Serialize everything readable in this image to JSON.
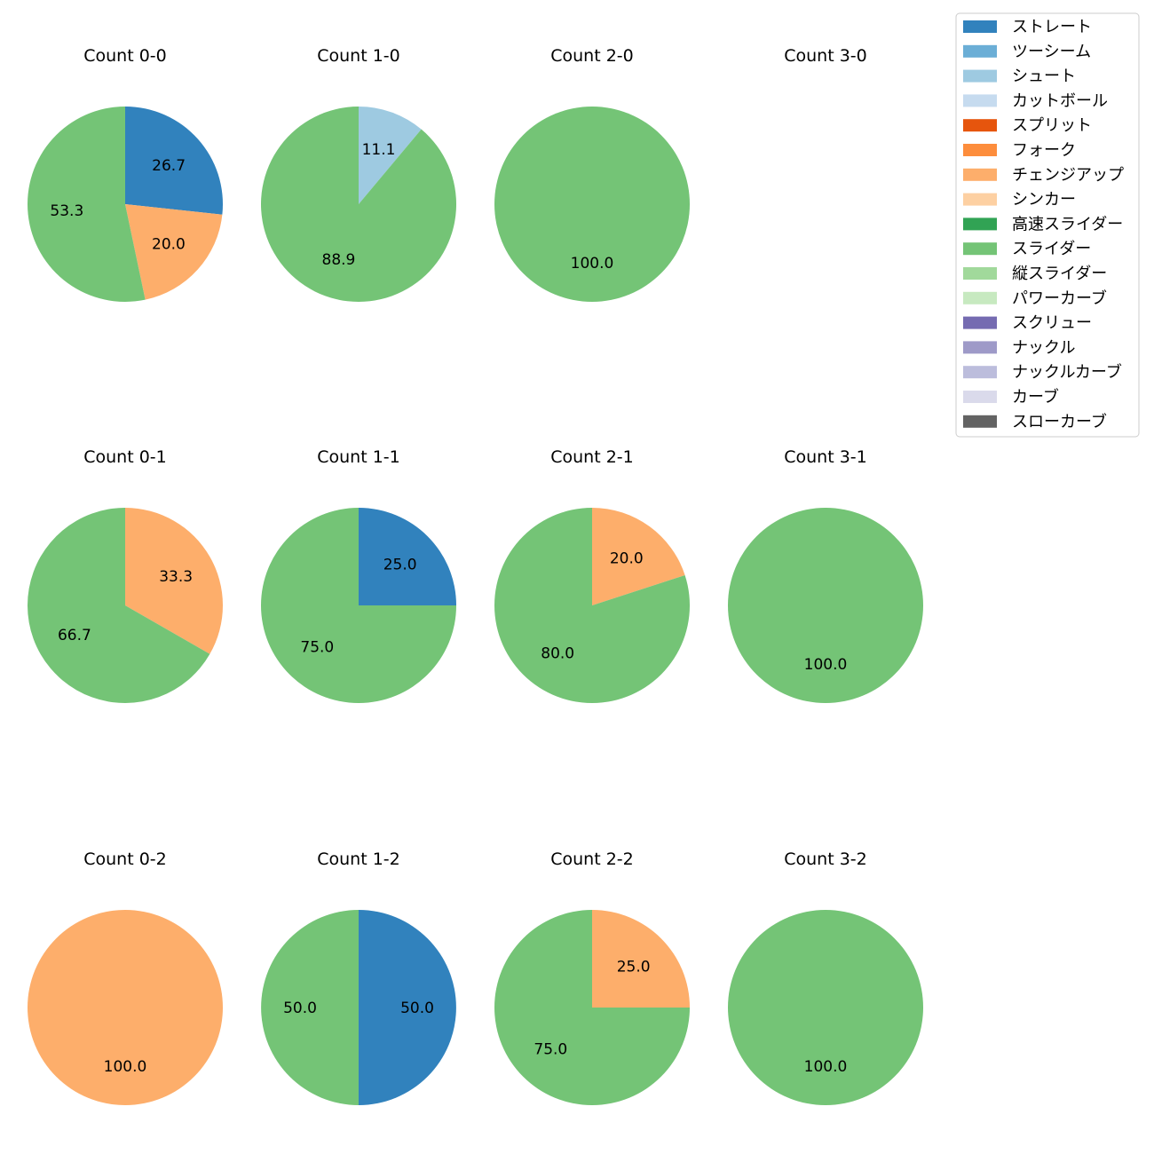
{
  "chart_data": {
    "type": "pie",
    "legend": {
      "placement": "top-right",
      "entries": [
        {
          "label": "ストレート",
          "color": "#3182bd"
        },
        {
          "label": "ツーシーム",
          "color": "#6baed6"
        },
        {
          "label": "シュート",
          "color": "#9ecae1"
        },
        {
          "label": "カットボール",
          "color": "#c6dbef"
        },
        {
          "label": "スプリット",
          "color": "#e6550d"
        },
        {
          "label": "フォーク",
          "color": "#fd8d3c"
        },
        {
          "label": "チェンジアップ",
          "color": "#fdae6b"
        },
        {
          "label": "シンカー",
          "color": "#fdd0a2"
        },
        {
          "label": "高速スライダー",
          "color": "#31a354"
        },
        {
          "label": "スライダー",
          "color": "#74c476"
        },
        {
          "label": "縦スライダー",
          "color": "#a1d99b"
        },
        {
          "label": "パワーカーブ",
          "color": "#c7e9c0"
        },
        {
          "label": "スクリュー",
          "color": "#756bb1"
        },
        {
          "label": "ナックル",
          "color": "#9e9ac8"
        },
        {
          "label": "ナックルカーブ",
          "color": "#bcbddc"
        },
        {
          "label": "カーブ",
          "color": "#dadaeb"
        },
        {
          "label": "スローカーブ",
          "color": "#636363"
        }
      ]
    },
    "pies": [
      {
        "title": "Count 0-0",
        "slices": [
          {
            "pitch": "ストレート",
            "value": 26.7,
            "label": "26.7"
          },
          {
            "pitch": "チェンジアップ",
            "value": 20.0,
            "label": "20.0"
          },
          {
            "pitch": "スライダー",
            "value": 53.3,
            "label": "53.3"
          }
        ]
      },
      {
        "title": "Count 1-0",
        "slices": [
          {
            "pitch": "シュート",
            "value": 11.1,
            "label": "11.1"
          },
          {
            "pitch": "スライダー",
            "value": 88.9,
            "label": "88.9"
          }
        ]
      },
      {
        "title": "Count 2-0",
        "slices": [
          {
            "pitch": "スライダー",
            "value": 100.0,
            "label": "100.0"
          }
        ]
      },
      {
        "title": "Count 3-0",
        "slices": []
      },
      {
        "title": "Count 0-1",
        "slices": [
          {
            "pitch": "チェンジアップ",
            "value": 33.3,
            "label": "33.3"
          },
          {
            "pitch": "スライダー",
            "value": 66.7,
            "label": "66.7"
          }
        ]
      },
      {
        "title": "Count 1-1",
        "slices": [
          {
            "pitch": "ストレート",
            "value": 25.0,
            "label": "25.0"
          },
          {
            "pitch": "スライダー",
            "value": 75.0,
            "label": "75.0"
          }
        ]
      },
      {
        "title": "Count 2-1",
        "slices": [
          {
            "pitch": "チェンジアップ",
            "value": 20.0,
            "label": "20.0"
          },
          {
            "pitch": "スライダー",
            "value": 80.0,
            "label": "80.0"
          }
        ]
      },
      {
        "title": "Count 3-1",
        "slices": [
          {
            "pitch": "スライダー",
            "value": 100.0,
            "label": "100.0"
          }
        ]
      },
      {
        "title": "Count 0-2",
        "slices": [
          {
            "pitch": "チェンジアップ",
            "value": 100.0,
            "label": "100.0"
          }
        ]
      },
      {
        "title": "Count 1-2",
        "slices": [
          {
            "pitch": "ストレート",
            "value": 50.0,
            "label": "50.0"
          },
          {
            "pitch": "スライダー",
            "value": 50.0,
            "label": "50.0"
          }
        ]
      },
      {
        "title": "Count 2-2",
        "slices": [
          {
            "pitch": "チェンジアップ",
            "value": 25.0,
            "label": "25.0"
          },
          {
            "pitch": "スライダー",
            "value": 75.0,
            "label": "75.0"
          }
        ]
      },
      {
        "title": "Count 3-2",
        "slices": [
          {
            "pitch": "スライダー",
            "value": 100.0,
            "label": "100.0"
          }
        ]
      }
    ]
  }
}
